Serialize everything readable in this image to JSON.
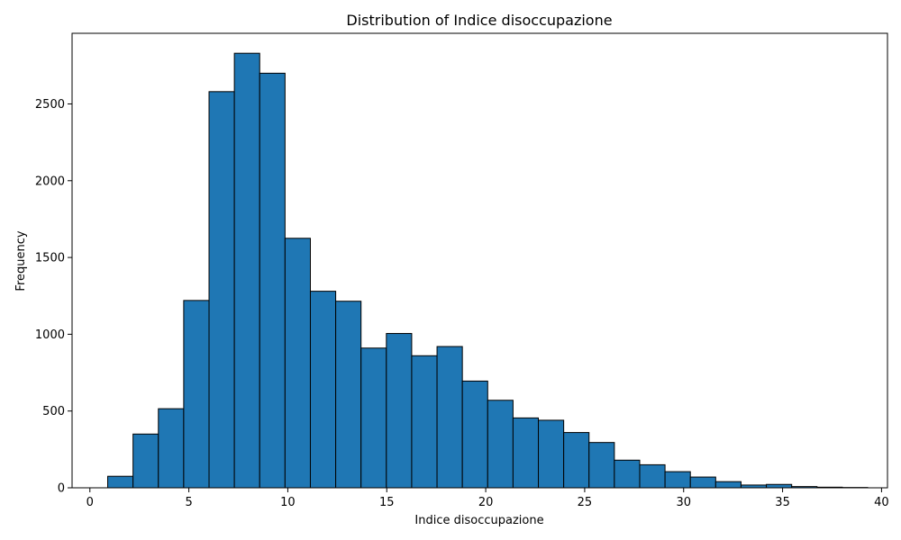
{
  "chart_data": {
    "type": "bar",
    "title": "Distribution of Indice disoccupazione",
    "xlabel": "Indice disoccupazione",
    "ylabel": "Frequency",
    "xlim": [
      -0.9,
      40.3
    ],
    "ylim": [
      0,
      2960
    ],
    "xticks": [
      0,
      5,
      10,
      15,
      20,
      25,
      30,
      35,
      40
    ],
    "yticks": [
      0,
      500,
      1000,
      1500,
      2000,
      2500
    ],
    "bin_edges": [
      0.9,
      2.18,
      3.46,
      4.74,
      6.02,
      7.3,
      8.58,
      9.86,
      11.14,
      12.42,
      13.7,
      14.98,
      16.26,
      17.54,
      18.82,
      20.1,
      21.38,
      22.66,
      23.94,
      25.22,
      26.5,
      27.78,
      29.06,
      30.34,
      31.62,
      32.9,
      34.18,
      35.46,
      36.74,
      38.02,
      39.3
    ],
    "values": [
      75,
      350,
      515,
      1220,
      2580,
      2830,
      2700,
      1625,
      1280,
      1215,
      910,
      1005,
      860,
      920,
      695,
      570,
      455,
      440,
      360,
      295,
      180,
      150,
      105,
      70,
      40,
      18,
      22,
      8,
      4,
      2
    ],
    "bar_color": "#1f77b4",
    "edge_color": "#000000",
    "grid": false,
    "legend": null
  }
}
